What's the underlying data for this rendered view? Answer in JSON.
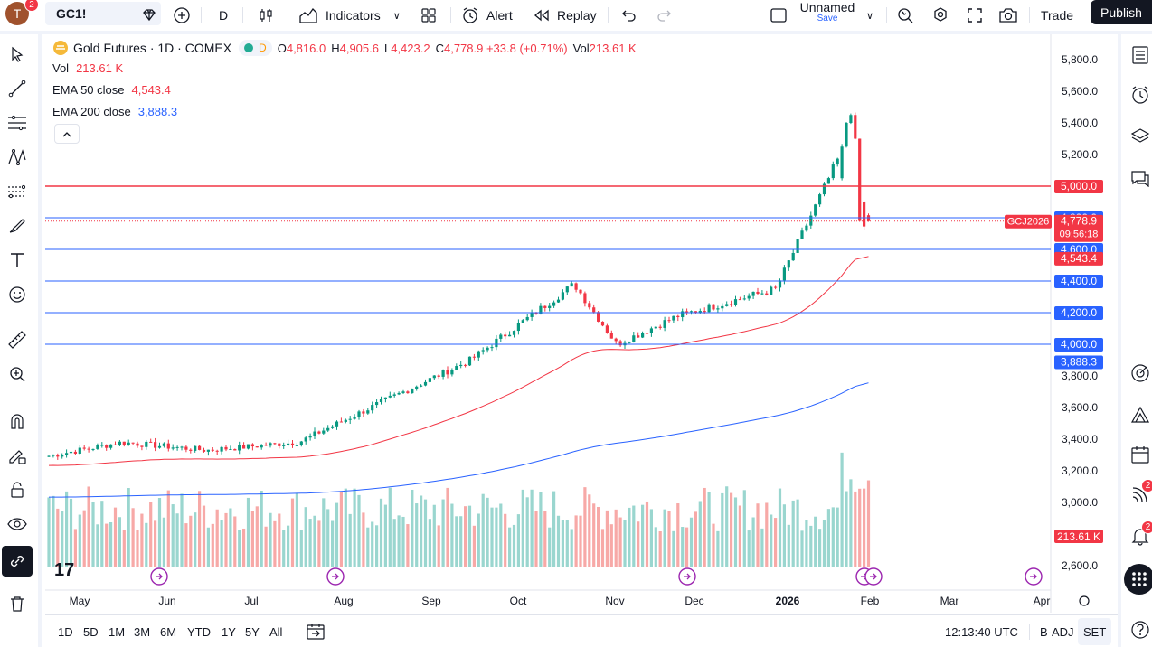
{
  "header": {
    "avatar_initial": "T",
    "avatar_badge": "2",
    "symbol": "GC1!",
    "interval": "D",
    "indicators_label": "Indicators",
    "alert_label": "Alert",
    "replay_label": "Replay",
    "layout_name": "Unnamed",
    "layout_save": "Save",
    "trade_label": "Trade",
    "publish_label": "Publish"
  },
  "legend": {
    "title": "Gold Futures · 1D · COMEX",
    "delayed_badge": "D",
    "ohlc": [
      {
        "label": "O",
        "value": "4,816.0"
      },
      {
        "label": "H",
        "value": "4,905.6"
      },
      {
        "label": "L",
        "value": "4,423.2"
      },
      {
        "label": "C",
        "value": "4,778.9 +33.8 (+0.71%)"
      },
      {
        "label": "Vol",
        "value": "213.61 K"
      }
    ],
    "vol_label": "Vol",
    "vol_value": "213.61 K",
    "ema50_label": "EMA 50 close",
    "ema50_value": "4,543.4",
    "ema200_label": "EMA 200 close",
    "ema200_value": "3,888.3"
  },
  "chart_data": {
    "type": "candlestick",
    "symbol": "GC1!",
    "x_tick_labels": [
      "May",
      "Jun",
      "Jul",
      "Aug",
      "Sep",
      "Oct",
      "Nov",
      "Dec",
      "2026",
      "Feb",
      "Mar",
      "Apr"
    ],
    "y_tick_labels": [
      "2,600.0",
      "2,800.0",
      "3,000.0",
      "3,200.0",
      "3,400.0",
      "3,600.0",
      "3,800.0",
      "4,000.0",
      "4,200.0",
      "4,400.0",
      "4,600.0",
      "4,800.0",
      "5,000.0",
      "5,200.0",
      "5,400.0",
      "5,600.0",
      "5,800.0"
    ],
    "ylim": [
      2560,
      5900
    ],
    "horizontal_lines": [
      {
        "price": 5000,
        "color": "#f23645",
        "label": "5,000.0"
      },
      {
        "price": 4800,
        "color": "#2962ff",
        "label": "4,800.0"
      },
      {
        "price": 4600,
        "color": "#2962ff",
        "label": "4,600.0"
      },
      {
        "price": 4400,
        "color": "#2962ff",
        "label": "4,400.0"
      },
      {
        "price": 4200,
        "color": "#2962ff",
        "label": "4,200.0"
      },
      {
        "price": 4000,
        "color": "#2962ff",
        "label": "4,000.0"
      }
    ],
    "last_price": {
      "price": 4778.9,
      "label": "4,778.9",
      "countdown": "09:56:18",
      "contract_label": "GCJ2026"
    },
    "ema50_last": {
      "price": 4543.4,
      "label": "4,543.4"
    },
    "ema200_last": {
      "price": 3888.3,
      "label": "3,888.3"
    },
    "volume_last_label": "213.61 K",
    "anchors": [
      {
        "label": "May",
        "close": 3290
      },
      {
        "label": "Jun",
        "close": 3380
      },
      {
        "label": "Jul",
        "close": 3330
      },
      {
        "label": "Aug",
        "close": 3380
      },
      {
        "label": "Sep",
        "close": 3650
      },
      {
        "label": "Oct",
        "close": 3900
      },
      {
        "label": "Oct peak",
        "close": 4380
      },
      {
        "label": "Nov",
        "close": 4000
      },
      {
        "label": "Dec",
        "close": 4180
      },
      {
        "label": "2026",
        "close": 4350
      },
      {
        "label": "Jan peak",
        "close": 5450
      },
      {
        "label": "Feb",
        "close": 4778.9
      }
    ],
    "colors": {
      "up": "#089981",
      "down": "#f23645",
      "ema50": "#f23645",
      "ema200": "#2962ff",
      "vol_up": "#9ad6cf",
      "vol_down": "#f7a9a7"
    }
  },
  "bottom": {
    "ranges": [
      "1D",
      "5D",
      "1M",
      "3M",
      "6M",
      "YTD",
      "1Y",
      "5Y",
      "All"
    ],
    "time": "12:13:40 UTC",
    "badj": "B-ADJ",
    "set": "SET"
  },
  "right_badges": {
    "feed": "2",
    "alerts": "2"
  }
}
